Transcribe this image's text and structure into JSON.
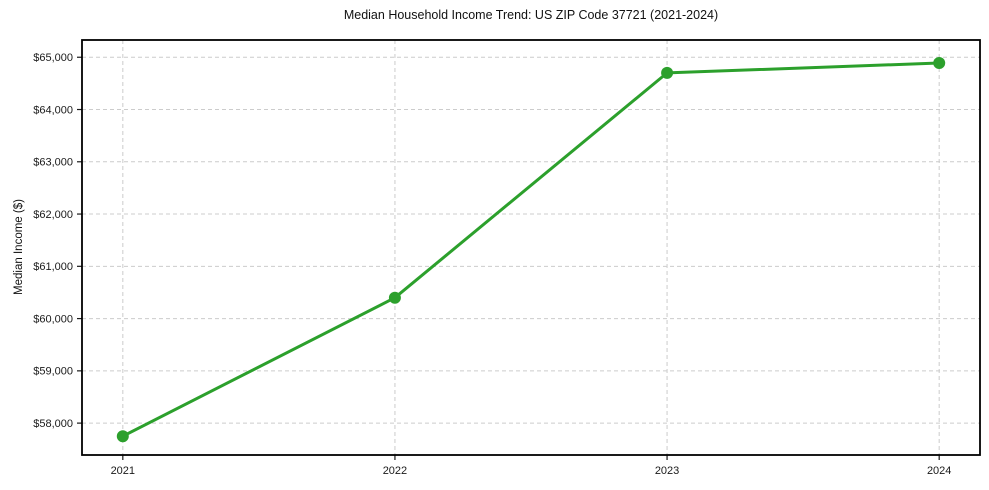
{
  "chart_data": {
    "type": "line",
    "title": "Median Household Income Trend: US ZIP Code 37721 (2021-2024)",
    "xlabel": "",
    "ylabel": "Median Income ($)",
    "categories": [
      "2021",
      "2022",
      "2023",
      "2024"
    ],
    "x": [
      2021,
      2022,
      2023,
      2024
    ],
    "series": [
      {
        "name": "Median Household Income",
        "values": [
          57750,
          60400,
          64700,
          64890
        ],
        "color": "#2ca02c",
        "marker": "circle"
      }
    ],
    "xlim": [
      2020.85,
      2024.15
    ],
    "ylim": [
      57390,
      65330
    ],
    "yticks": [
      58000,
      59000,
      60000,
      61000,
      62000,
      63000,
      64000,
      65000
    ],
    "ytick_labels": [
      "$58,000",
      "$59,000",
      "$60,000",
      "$61,000",
      "$62,000",
      "$63,000",
      "$64,000",
      "$65,000"
    ],
    "grid": true,
    "grid_color": "#cccccc",
    "grid_style": "dashed",
    "legend_position": "none",
    "frame_color": "#000000",
    "tick_color": "#1a1a1a",
    "background_color": "#ffffff"
  }
}
